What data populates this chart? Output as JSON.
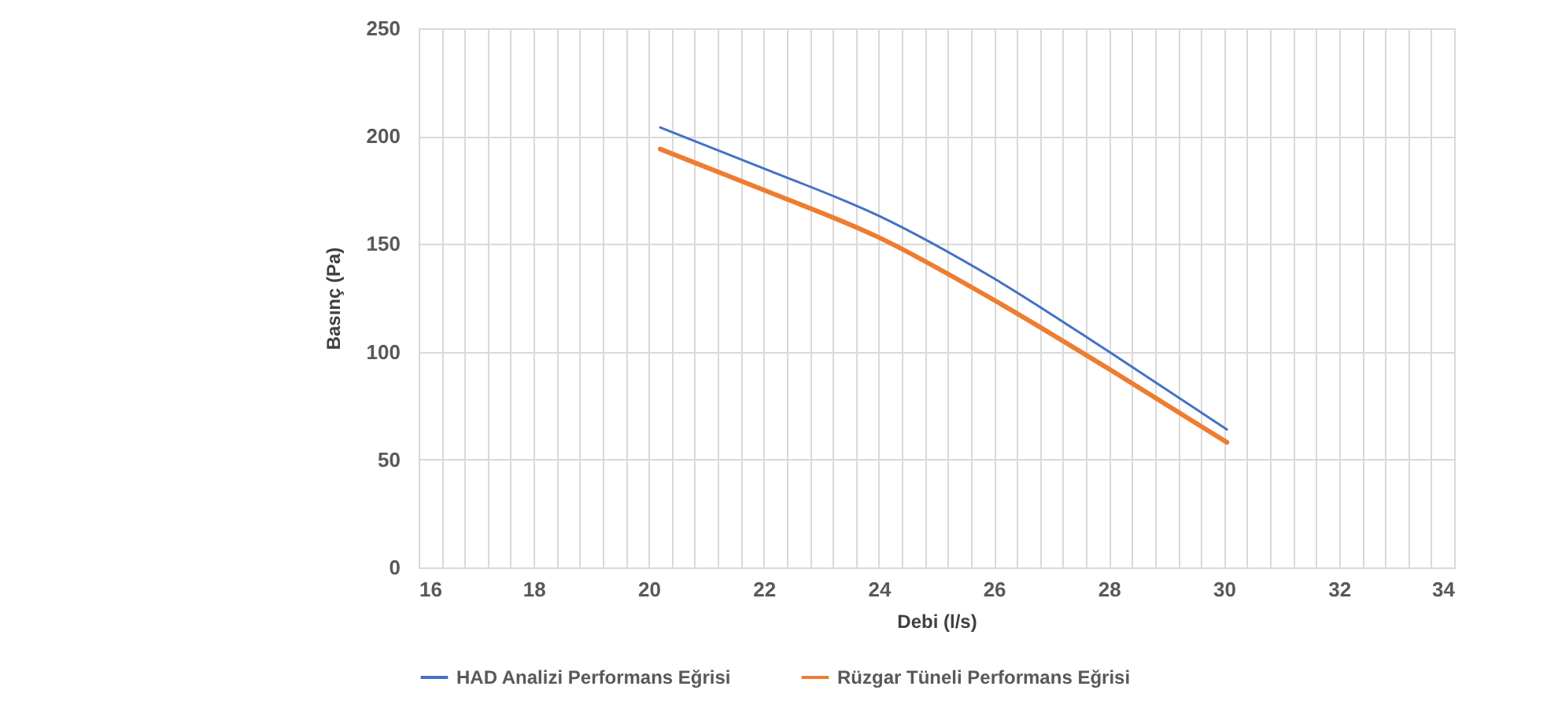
{
  "chart_data": {
    "type": "line",
    "xlabel": "Debi (l/s)",
    "ylabel": "Basınç (Pa)",
    "xlim": [
      16,
      34
    ],
    "ylim": [
      0,
      250
    ],
    "xticks": [
      16,
      {
        "value": 16.4,
        "label": null
      },
      {
        "value": 16.8,
        "label": null
      },
      {
        "value": 17.2,
        "label": null
      },
      {
        "value": 17.6,
        "label": null
      },
      18,
      {
        "value": 18.4,
        "label": null
      },
      {
        "value": 18.8,
        "label": null
      },
      {
        "value": 19.2,
        "label": null
      },
      {
        "value": 19.6,
        "label": null
      },
      20,
      {
        "value": 20.4,
        "label": null
      },
      {
        "value": 20.8,
        "label": null
      },
      {
        "value": 21.2,
        "label": null
      },
      {
        "value": 21.6,
        "label": null
      },
      22,
      {
        "value": 22.4,
        "label": null
      },
      {
        "value": 22.8,
        "label": null
      },
      {
        "value": 23.2,
        "label": null
      },
      {
        "value": 23.6,
        "label": null
      },
      24,
      {
        "value": 24.4,
        "label": null
      },
      {
        "value": 24.8,
        "label": null
      },
      {
        "value": 25.2,
        "label": null
      },
      {
        "value": 25.6,
        "label": null
      },
      26,
      {
        "value": 26.4,
        "label": null
      },
      {
        "value": 26.8,
        "label": null
      },
      {
        "value": 27.2,
        "label": null
      },
      {
        "value": 27.6,
        "label": null
      },
      28,
      {
        "value": 28.4,
        "label": null
      },
      {
        "value": 28.8,
        "label": null
      },
      {
        "value": 29.2,
        "label": null
      },
      {
        "value": 29.6,
        "label": null
      },
      30,
      {
        "value": 30.4,
        "label": null
      },
      {
        "value": 30.8,
        "label": null
      },
      {
        "value": 31.2,
        "label": null
      },
      {
        "value": 31.6,
        "label": null
      },
      32,
      {
        "value": 32.4,
        "label": null
      },
      {
        "value": 32.8,
        "label": null
      },
      {
        "value": 33.2,
        "label": null
      },
      {
        "value": 33.6,
        "label": null
      },
      34
    ],
    "yticks": [
      0,
      50,
      100,
      150,
      200,
      250
    ],
    "x": [
      20.2,
      22,
      24,
      26,
      28,
      30.05
    ],
    "series": [
      {
        "name": "HAD Analizi Performans Eğrisi",
        "color": "#4472c4",
        "values": [
          204,
          185,
          163,
          134,
          100,
          64
        ]
      },
      {
        "name": "Rüzgar Tüneli Performans Eğrisi",
        "color": "#ed7d31",
        "values": [
          194,
          175,
          153,
          124,
          92,
          58
        ]
      }
    ],
    "grid": true,
    "legend": "bottom",
    "marker": "none",
    "line_style": "solid"
  }
}
